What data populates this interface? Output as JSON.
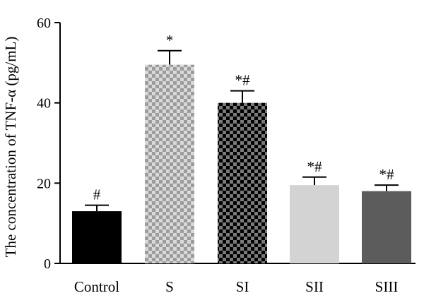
{
  "chart_data": {
    "type": "bar",
    "title": "",
    "xlabel": "",
    "ylabel": "The concentration of TNF-α (pg/mL)",
    "ylim": [
      0,
      60
    ],
    "yticks": [
      0,
      20,
      40,
      60
    ],
    "grid": false,
    "categories": [
      "Control",
      "S",
      "SI",
      "SII",
      "SIII"
    ],
    "values": [
      13,
      49.5,
      40,
      19.5,
      18
    ],
    "errors": [
      1.5,
      3.5,
      3,
      2,
      1.5
    ],
    "annotations": [
      "#",
      "*",
      "*#",
      "*#",
      "*#"
    ],
    "bar_styles": [
      {
        "fill": "#000000",
        "pattern": "solid"
      },
      {
        "fill": "#b8b8b8",
        "pattern": "checker",
        "colors": [
          "#d9d9d9",
          "#9c9c9c"
        ]
      },
      {
        "fill": "#3a3a3a",
        "pattern": "checker",
        "colors": [
          "#000000",
          "#7a7a7a"
        ]
      },
      {
        "fill": "#d3d3d3",
        "pattern": "solid"
      },
      {
        "fill": "#5c5c5c",
        "pattern": "solid"
      }
    ]
  }
}
